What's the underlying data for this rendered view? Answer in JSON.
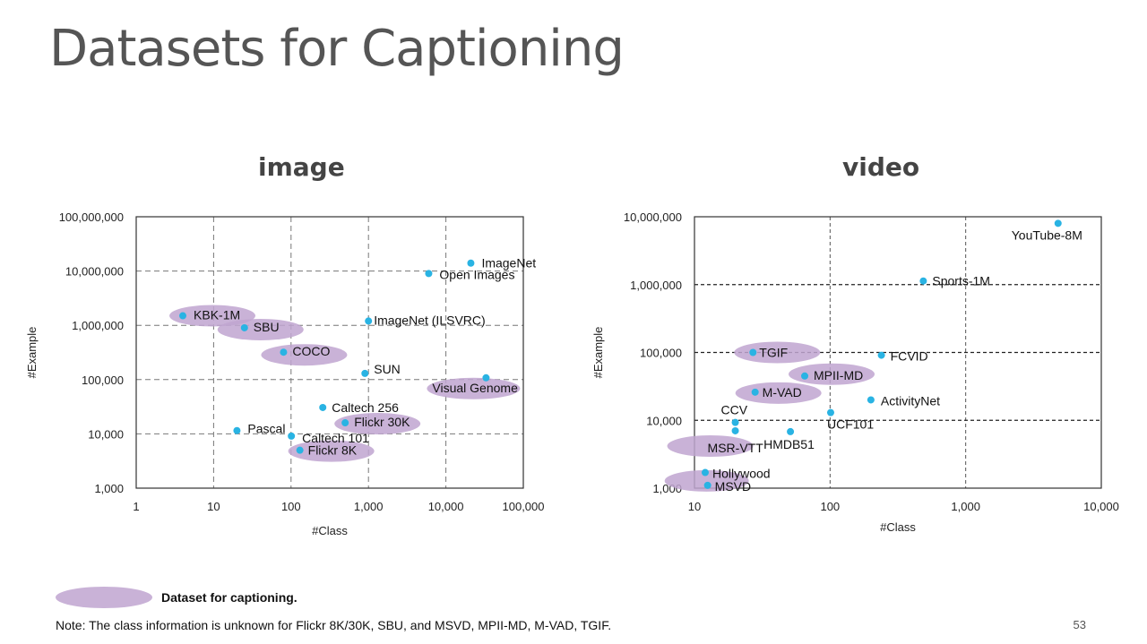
{
  "slide": {
    "title": "Datasets for Captioning",
    "legend_label": "Dataset for captioning.",
    "note": "Note: The class information is unknown for Flickr 8K/30K, SBU, and MSVD, MPII-MD, M-VAD, TGIF.",
    "page_number": "53"
  },
  "colors": {
    "point": "#29b3e3",
    "highlight": "#bfa5d0",
    "grid": "#666666",
    "axis": "#333333"
  },
  "chart_data": [
    {
      "type": "scatter",
      "title": "image",
      "xlabel": "#Class",
      "ylabel": "#Example",
      "xscale": "log",
      "yscale": "log",
      "xlim": [
        1,
        100000
      ],
      "ylim": [
        1000,
        100000000
      ],
      "xticks": [
        1,
        10,
        100,
        1000,
        10000,
        100000
      ],
      "xtick_labels": [
        "1",
        "10",
        "100",
        "1,000",
        "10,000",
        "100,000"
      ],
      "yticks": [
        1000,
        10000,
        100000,
        1000000,
        10000000,
        100000000
      ],
      "ytick_labels": [
        "1,000",
        "10,000",
        "100,000",
        "1,000,000",
        "10,000,000",
        "100,000,000"
      ],
      "grid": "dashed",
      "points": [
        {
          "label": "KBK-1M",
          "x": 4,
          "y": 1500000,
          "captioning": true
        },
        {
          "label": "SBU",
          "x": 25,
          "y": 900000,
          "captioning": true
        },
        {
          "label": "COCO",
          "x": 80,
          "y": 320000,
          "captioning": true
        },
        {
          "label": "ImageNet",
          "x": 21000,
          "y": 14000000,
          "captioning": false
        },
        {
          "label": "Open Images",
          "x": 6000,
          "y": 9000000,
          "captioning": false
        },
        {
          "label": "ImageNet (ILSVRC)",
          "x": 1000,
          "y": 1200000,
          "captioning": false
        },
        {
          "label": "SUN",
          "x": 900,
          "y": 130000,
          "captioning": false
        },
        {
          "label": "Visual Genome",
          "x": 33000,
          "y": 108000,
          "captioning": true
        },
        {
          "label": "Caltech 256",
          "x": 257,
          "y": 30600,
          "captioning": false
        },
        {
          "label": "Flickr 30K",
          "x": 500,
          "y": 16000,
          "captioning": true
        },
        {
          "label": "Pascal",
          "x": 20,
          "y": 11500,
          "captioning": false
        },
        {
          "label": "Caltech 101",
          "x": 101,
          "y": 9100,
          "captioning": false
        },
        {
          "label": "Flickr 8K",
          "x": 130,
          "y": 5000,
          "captioning": true
        }
      ]
    },
    {
      "type": "scatter",
      "title": "video",
      "xlabel": "#Class",
      "ylabel": "#Example",
      "xscale": "log",
      "yscale": "log",
      "xlim": [
        10,
        10000
      ],
      "ylim": [
        1000,
        10000000
      ],
      "xticks": [
        10,
        100,
        1000,
        10000
      ],
      "xtick_labels": [
        "10",
        "100",
        "1,000",
        "10,000"
      ],
      "yticks": [
        1000,
        10000,
        100000,
        1000000,
        10000000
      ],
      "ytick_labels": [
        "1,000",
        "10,000",
        "100,000",
        "1,000,000",
        "10,000,000"
      ],
      "grid": "dashed",
      "points": [
        {
          "label": "YouTube-8M",
          "x": 4800,
          "y": 8000000,
          "captioning": false
        },
        {
          "label": "Sports-1M",
          "x": 487,
          "y": 1130000,
          "captioning": false
        },
        {
          "label": "TGIF",
          "x": 27,
          "y": 100000,
          "captioning": true
        },
        {
          "label": "FCVID",
          "x": 239,
          "y": 91000,
          "captioning": false
        },
        {
          "label": "MPII-MD",
          "x": 65,
          "y": 45000,
          "captioning": true
        },
        {
          "label": "M-VAD",
          "x": 28,
          "y": 26000,
          "captioning": true
        },
        {
          "label": "ActivityNet",
          "x": 200,
          "y": 20000,
          "captioning": false
        },
        {
          "label": "UCF101",
          "x": 101,
          "y": 13000,
          "captioning": false
        },
        {
          "label": "CCV",
          "x": 20,
          "y": 9300,
          "captioning": false
        },
        {
          "label": "MSR-VTT",
          "x": 20,
          "y": 7000,
          "captioning": true
        },
        {
          "label": "HMDB51",
          "x": 51,
          "y": 6800,
          "captioning": false
        },
        {
          "label": "Hollywood",
          "x": 12,
          "y": 1700,
          "captioning": false
        },
        {
          "label": "MSVD",
          "x": 12.5,
          "y": 1100,
          "captioning": true
        }
      ]
    }
  ]
}
